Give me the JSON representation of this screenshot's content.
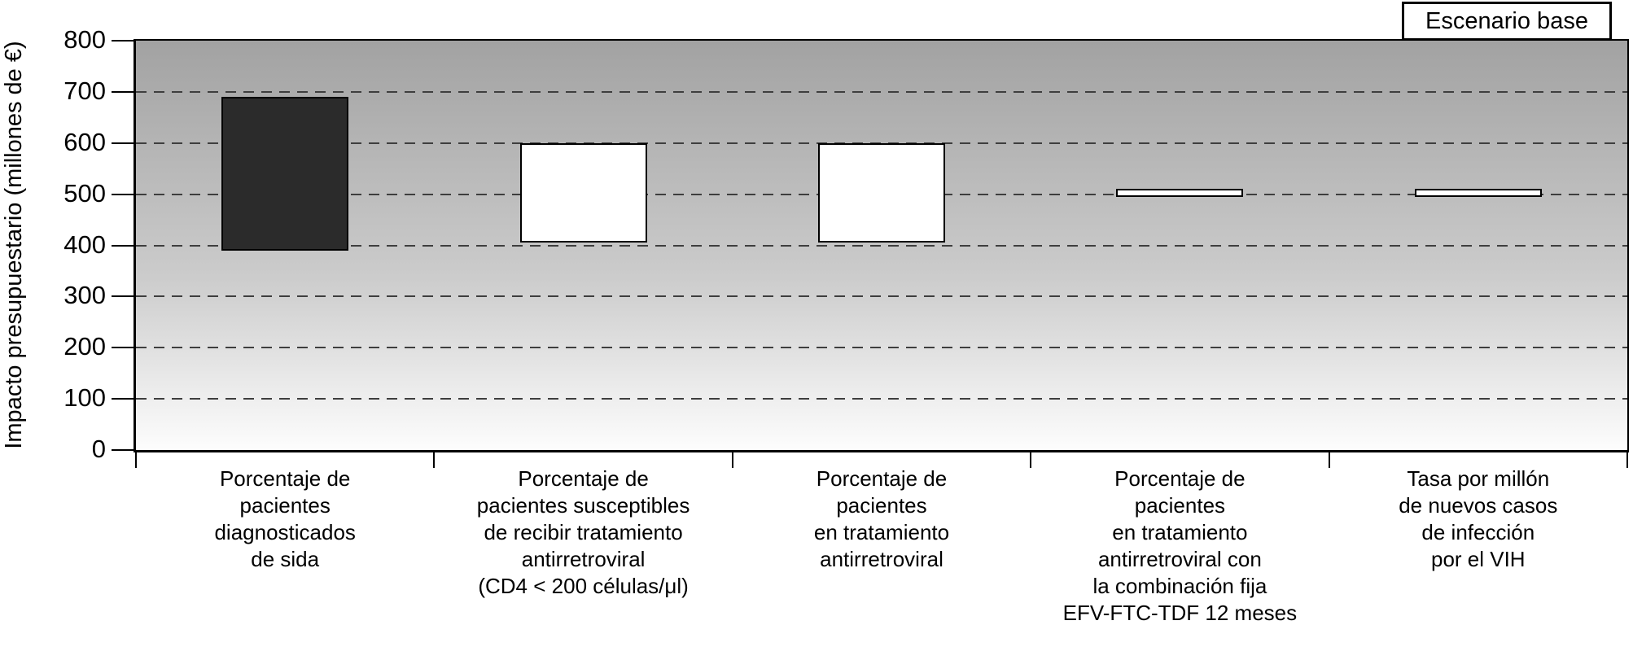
{
  "chart_data": {
    "type": "bar",
    "subtype": "floating-range-sensitivity-bars",
    "title": "",
    "xlabel": "",
    "ylabel": "Impacto presupuestario (millones de €)",
    "ylim": [
      0,
      800
    ],
    "ytick_step": 100,
    "grid": "horizontal dashed gridlines at every 100",
    "legend": {
      "label": "Escenario base",
      "position": "top-right"
    },
    "bars": [
      {
        "label": "Porcentaje de\npacientes\ndiagnosticados\nde sida",
        "low": 390,
        "high": 690,
        "fill": "#2b2b2b"
      },
      {
        "label": "Porcentaje de\npacientes susceptibles\nde recibir tratamiento\nantirretroviral\n(CD4 < 200 células/μl)",
        "low": 405,
        "high": 600,
        "fill": "#ffffff"
      },
      {
        "label": "Porcentaje de\npacientes\nen tratamiento\nantirretroviral",
        "low": 405,
        "high": 600,
        "fill": "#ffffff"
      },
      {
        "label": "Porcentaje de\npacientes\nen tratamiento\nantirretroviral con\nla combinación fija\nEFV-FTC-TDF 12 meses",
        "low": 495,
        "high": 510,
        "fill": "#ffffff"
      },
      {
        "label": "Tasa por millón\nde nuevos casos\nde infección\npor el VIH",
        "low": 495,
        "high": 510,
        "fill": "#ffffff"
      }
    ],
    "colors": {
      "plot_gradient_top": "#a2a2a2",
      "plot_gradient_bottom": "#fdfdfd",
      "gridline": "#3e3e3e",
      "bar_border": "#000000",
      "dark_bar_fill": "#2b2b2b",
      "axis": "#000000"
    }
  }
}
